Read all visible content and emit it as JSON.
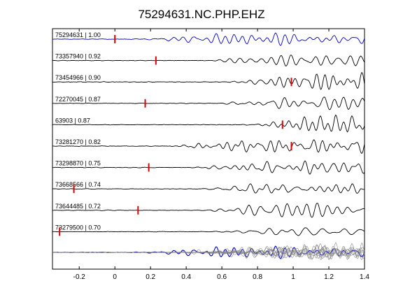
{
  "chart_data": {
    "type": "line",
    "title": "75294631.NC.PHP.EHZ",
    "xlabel": "",
    "ylabel": "",
    "xlim": [
      -0.35,
      1.4
    ],
    "x_ticks": [
      "-0.2",
      "0",
      "0.2",
      "0.4",
      "0.6",
      "0.8",
      "1",
      "1.2",
      "1.4"
    ],
    "x_tick_values": [
      -0.2,
      0,
      0.2,
      0.4,
      0.6,
      0.8,
      1.0,
      1.2,
      1.4
    ],
    "grid": false,
    "legend": "none",
    "colors": {
      "reference": "#0000cc",
      "trace": "#000000",
      "pick": "#dd0000",
      "stack": "#808080"
    },
    "series": [
      {
        "name": "75294631 | 1.00",
        "pick": 0.0,
        "color": "#0000cc",
        "onset": 0.08,
        "amp": 0.55,
        "seed": 1
      },
      {
        "name": "73357940 | 0.92",
        "pick": 0.23,
        "color": "#000000",
        "onset": 0.55,
        "amp": 0.8,
        "seed": 2
      },
      {
        "name": "73454966 | 0.90",
        "pick": 0.99,
        "color": "#000000",
        "onset": 0.62,
        "amp": 0.8,
        "seed": 3
      },
      {
        "name": "72270045 | 0.87",
        "pick": 0.17,
        "color": "#000000",
        "onset": 0.58,
        "amp": 0.75,
        "seed": 4
      },
      {
        "name": "63903 | 0.87",
        "pick": 0.94,
        "color": "#000000",
        "onset": 0.72,
        "amp": 0.85,
        "seed": 5
      },
      {
        "name": "73281270 | 0.82",
        "pick": 0.99,
        "color": "#000000",
        "onset": 0.3,
        "amp": 0.75,
        "seed": 6
      },
      {
        "name": "73298870 | 0.75",
        "pick": 0.19,
        "color": "#000000",
        "onset": 0.45,
        "amp": 0.8,
        "seed": 7
      },
      {
        "name": "73668566 | 0.74",
        "pick": -0.23,
        "color": "#000000",
        "onset": 0.48,
        "amp": 0.8,
        "seed": 8
      },
      {
        "name": "73644485 | 0.72",
        "pick": 0.13,
        "color": "#000000",
        "onset": 0.52,
        "amp": 0.85,
        "seed": 9
      },
      {
        "name": "73279500 | 0.70",
        "pick": -0.31,
        "color": "#000000",
        "onset": 0.55,
        "amp": 0.55,
        "seed": 10
      }
    ],
    "stack": {
      "label": "",
      "ref_seed": 1,
      "count": 10
    }
  }
}
